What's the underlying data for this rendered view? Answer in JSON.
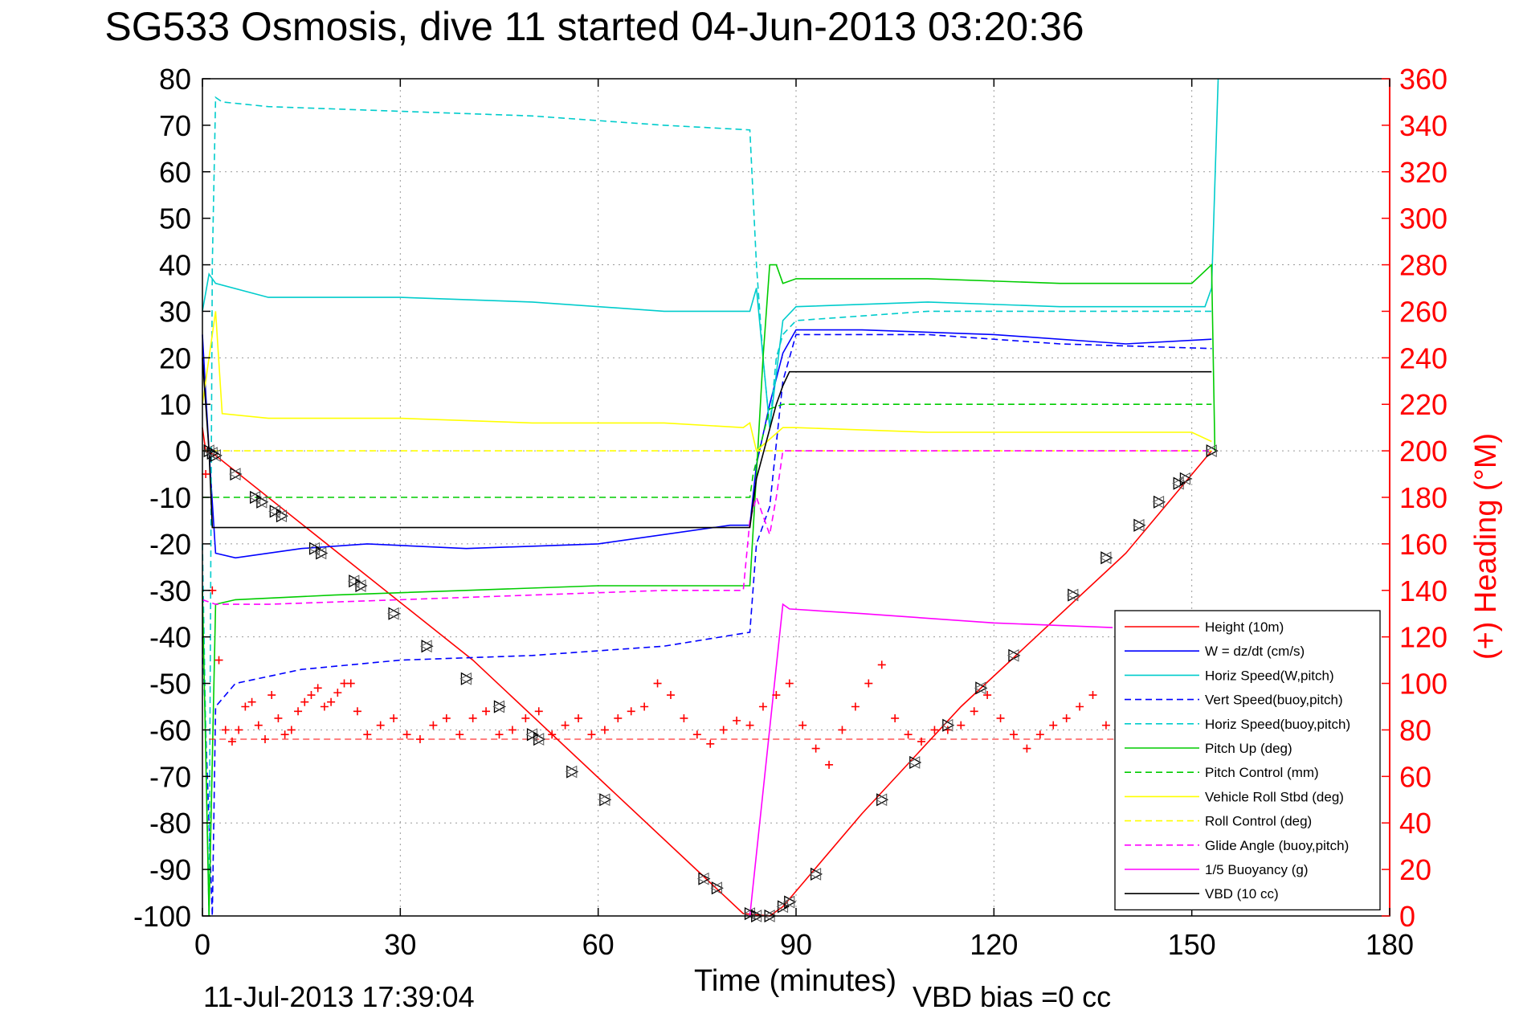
{
  "chart_data": {
    "type": "line",
    "title": "SG533 Osmosis, dive 11 started 04-Jun-2013 03:20:36",
    "xlabel": "Time (minutes)",
    "ylabel": "",
    "y2label": "(+) Heading (°M)",
    "xlim": [
      0,
      180
    ],
    "ylim": [
      -100,
      80
    ],
    "y2lim": [
      0,
      360
    ],
    "xticks": [
      "0",
      "30",
      "60",
      "90",
      "120",
      "150",
      "180"
    ],
    "yticks": [
      "80",
      "70",
      "60",
      "50",
      "40",
      "30",
      "20",
      "10",
      "0",
      "-10",
      "-20",
      "-30",
      "-40",
      "-50",
      "-60",
      "-70",
      "-80",
      "-90",
      "-100"
    ],
    "y2ticks": [
      "360",
      "340",
      "320",
      "300",
      "280",
      "260",
      "240",
      "220",
      "200",
      "180",
      "160",
      "140",
      "120",
      "100",
      "80",
      "60",
      "40",
      "20",
      "0"
    ],
    "grid": true,
    "legend_position": "bottom-right",
    "footer_date": "11-Jul-2013 17:39:04",
    "footer_note": "VBD bias =0 cc",
    "colors": {
      "heading": "#ff0000",
      "axis": "#000000",
      "y2axis": "#ff0000",
      "grid": "#999999"
    },
    "series": [
      {
        "name": "Height (10m)",
        "color": "#ff0000",
        "style": "solid",
        "x": [
          0,
          0.5,
          2,
          41,
          82,
          86,
          88,
          100,
          115,
          140,
          153
        ],
        "y": [
          5,
          0,
          -1,
          -45,
          -99.5,
          -100,
          -98,
          -78,
          -55,
          -22,
          0
        ]
      },
      {
        "name": "W = dz/dt (cm/s)",
        "color": "#0000ff",
        "style": "solid",
        "x": [
          0,
          1,
          2,
          5,
          15,
          25,
          40,
          60,
          80,
          83,
          84,
          86,
          88,
          90,
          100,
          120,
          140,
          153
        ],
        "y": [
          25,
          0,
          -22,
          -23,
          -21,
          -20,
          -21,
          -20,
          -16,
          -16,
          -3,
          10,
          21,
          26,
          26,
          25,
          23,
          24
        ]
      },
      {
        "name": "Horiz Speed(W,pitch)",
        "color": "#00cccc",
        "style": "solid",
        "x": [
          0,
          1,
          2,
          10,
          30,
          50,
          70,
          80,
          83,
          84,
          85,
          86,
          88,
          90,
          110,
          130,
          152,
          153,
          154
        ],
        "y": [
          30,
          38,
          36,
          33,
          33,
          32,
          30,
          30,
          30,
          35,
          20,
          5,
          28,
          31,
          32,
          31,
          31,
          35,
          80
        ]
      },
      {
        "name": "Vert Speed(buoy,pitch)",
        "color": "#0000ff",
        "style": "dashed",
        "x": [
          0,
          1,
          1.5,
          2,
          5,
          15,
          30,
          50,
          70,
          83,
          84,
          86,
          88,
          90,
          110,
          130,
          153
        ],
        "y": [
          -40,
          -80,
          -100,
          -55,
          -50,
          -47,
          -45,
          -44,
          -42,
          -39,
          -20,
          -12,
          15,
          25,
          25,
          23,
          22
        ]
      },
      {
        "name": "Horiz Speed(buoy,pitch)",
        "color": "#00cccc",
        "style": "dashed",
        "x": [
          0,
          1,
          1.5,
          2,
          3,
          10,
          30,
          50,
          70,
          83,
          84,
          85,
          86,
          87,
          88,
          90,
          110,
          130,
          153
        ],
        "y": [
          -20,
          -100,
          40,
          76,
          75,
          74,
          73,
          72,
          70,
          69,
          40,
          20,
          5,
          20,
          25,
          28,
          30,
          30,
          30
        ]
      },
      {
        "name": "Pitch Up (deg)",
        "color": "#00cc00",
        "style": "solid",
        "x": [
          0,
          1,
          2,
          5,
          20,
          40,
          60,
          70,
          83,
          84,
          85,
          86,
          87,
          88,
          90,
          110,
          130,
          150,
          153,
          153.5
        ],
        "y": [
          -30,
          -100,
          -33,
          -32,
          -31,
          -30,
          -29,
          -29,
          -29,
          -5,
          20,
          40,
          40,
          36,
          37,
          37,
          36,
          36,
          40,
          0
        ]
      },
      {
        "name": "Pitch Control (mm)",
        "color": "#00cc00",
        "style": "dashed",
        "x": [
          0,
          1.5,
          2,
          10,
          40,
          83,
          83.5,
          86,
          88,
          90,
          120,
          153
        ],
        "y": [
          -10,
          -10,
          -10,
          -10,
          -10,
          -10,
          -5,
          9,
          10,
          10,
          10,
          10
        ]
      },
      {
        "name": "Vehicle Roll Stbd (deg)",
        "color": "#ffff00",
        "style": "solid",
        "x": [
          0,
          2,
          3,
          10,
          30,
          50,
          70,
          82,
          83,
          84,
          88,
          90,
          110,
          130,
          150,
          153
        ],
        "y": [
          10,
          30,
          8,
          7,
          7,
          6,
          6,
          5,
          6,
          0,
          5,
          5,
          4,
          4,
          4,
          2
        ]
      },
      {
        "name": "Roll Control (deg)",
        "color": "#ffff00",
        "style": "dashed",
        "x": [
          0,
          2,
          10,
          40,
          83,
          84,
          88,
          153
        ],
        "y": [
          0,
          0,
          0,
          0,
          0,
          0,
          0,
          0
        ]
      },
      {
        "name": "Glide Angle (buoy,pitch)",
        "color": "#ff00ff",
        "style": "dashed",
        "x": [
          0,
          2,
          10,
          30,
          50,
          70,
          82,
          83,
          84,
          86,
          87,
          88,
          153
        ],
        "y": [
          -32,
          -33,
          -33,
          -32,
          -31,
          -30,
          -30,
          -15,
          -10,
          -18,
          -10,
          0,
          0
        ]
      },
      {
        "name": "1/5 Buoyancy (g)",
        "color": "#ff00ff",
        "style": "solid",
        "x": [
          83,
          88,
          89,
          100,
          120,
          138
        ],
        "y": [
          -100,
          -33,
          -34,
          -35,
          -37,
          -38
        ]
      },
      {
        "name": "VBD (10 cc)",
        "color": "#000000",
        "style": "solid",
        "x": [
          0,
          1,
          1.5,
          83,
          84,
          87,
          88,
          89,
          153
        ],
        "y": [
          20,
          0,
          -16.5,
          -16.5,
          -6,
          10,
          14,
          17,
          17
        ]
      }
    ],
    "heading": {
      "name": "(+) Heading (°M)",
      "y2": "heading",
      "x": [
        0.5,
        1.5,
        2.5,
        3.5,
        4.5,
        5.5,
        6.5,
        7.5,
        8.5,
        9.5,
        10.5,
        11.5,
        12.5,
        13.5,
        14.5,
        15.5,
        16.5,
        17.5,
        18.5,
        19.5,
        20.5,
        21.5,
        22.5,
        23.5,
        25,
        27,
        29,
        31,
        33,
        35,
        37,
        39,
        41,
        43,
        45,
        47,
        49,
        51,
        53,
        55,
        57,
        59,
        61,
        63,
        65,
        67,
        69,
        71,
        73,
        75,
        77,
        79,
        81,
        83,
        85,
        87,
        89,
        91,
        93,
        95,
        97,
        99,
        101,
        103,
        105,
        107,
        109,
        111,
        113,
        115,
        117,
        119,
        121,
        123,
        125,
        127,
        129,
        131,
        133,
        135,
        137,
        139,
        141,
        143,
        145,
        147,
        149,
        151,
        153
      ],
      "y": [
        190,
        140,
        110,
        80,
        75,
        80,
        90,
        92,
        82,
        76,
        95,
        85,
        78,
        80,
        88,
        92,
        95,
        98,
        90,
        92,
        96,
        100,
        100,
        88,
        78,
        82,
        85,
        78,
        76,
        82,
        85,
        78,
        85,
        88,
        78,
        80,
        85,
        88,
        78,
        82,
        85,
        78,
        80,
        85,
        88,
        90,
        100,
        95,
        85,
        78,
        74,
        80,
        84,
        82,
        90,
        95,
        100,
        82,
        72,
        65,
        80,
        90,
        100,
        108,
        85,
        78,
        75,
        80,
        80,
        82,
        88,
        95,
        85,
        78,
        72,
        78,
        82,
        85,
        90,
        95,
        82,
        78,
        85,
        92,
        95,
        88,
        90,
        82,
        85
      ],
      "ref": 76
    },
    "markers": {
      "name": "Height (10m)",
      "x": [
        1,
        1.5,
        2,
        5,
        8,
        9,
        11,
        12,
        17,
        18,
        23,
        24,
        29,
        34,
        40,
        45,
        50,
        51,
        56,
        61,
        76,
        78,
        83,
        84,
        86,
        88,
        89,
        93,
        103,
        108,
        113,
        118,
        123,
        132,
        137,
        142,
        145,
        148,
        149,
        153
      ],
      "y": [
        0,
        -0.5,
        -1,
        -5,
        -10,
        -11,
        -13,
        -14,
        -21,
        -22,
        -28,
        -29,
        -35,
        -42,
        -49,
        -55,
        -61,
        -62,
        -69,
        -75,
        -92,
        -94,
        -99.5,
        -100,
        -100,
        -98,
        -97,
        -91,
        -75,
        -67,
        -59,
        -51,
        -44,
        -31,
        -23,
        -16,
        -11,
        -7,
        -6,
        0
      ]
    }
  }
}
